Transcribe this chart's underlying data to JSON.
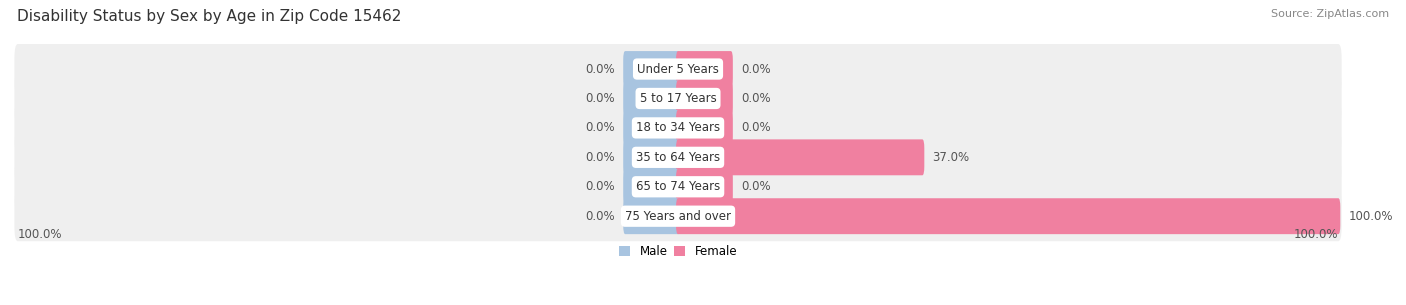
{
  "title": "Disability Status by Sex by Age in Zip Code 15462",
  "source": "Source: ZipAtlas.com",
  "categories": [
    "Under 5 Years",
    "5 to 17 Years",
    "18 to 34 Years",
    "35 to 64 Years",
    "65 to 74 Years",
    "75 Years and over"
  ],
  "male_values": [
    0.0,
    0.0,
    0.0,
    0.0,
    0.0,
    0.0
  ],
  "female_values": [
    0.0,
    0.0,
    0.0,
    37.0,
    0.0,
    100.0
  ],
  "male_color": "#a8c4e0",
  "female_color": "#f080a0",
  "row_bg_color": "#efefef",
  "max_value": 100.0,
  "min_stub": 8.0,
  "title_fontsize": 11,
  "source_fontsize": 8,
  "label_fontsize": 8.5,
  "category_fontsize": 8.5,
  "bar_height": 0.62,
  "fig_width": 14.06,
  "fig_height": 3.05
}
